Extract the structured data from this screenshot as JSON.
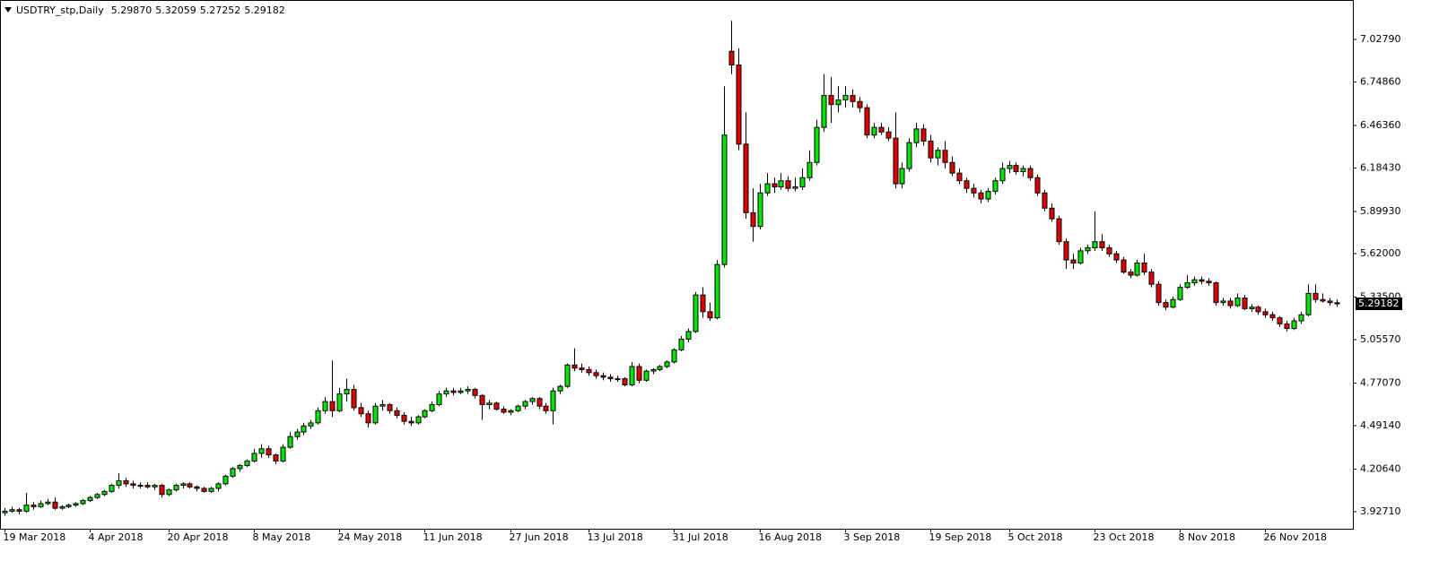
{
  "chart_data": {
    "type": "candlestick",
    "symbol": "USDTRY_stp,Daily",
    "ohlc_labels": [
      "5.29870",
      "5.32059",
      "5.27252",
      "5.29182"
    ],
    "up_color": "#00e600",
    "down_color": "#e00000",
    "outline": "#000000",
    "ylim": [
      3.815,
      7.269
    ],
    "yticks": [
      {
        "value": 3.9271,
        "label": "3.92710"
      },
      {
        "value": 4.2064,
        "label": "4.20640"
      },
      {
        "value": 4.4914,
        "label": "4.49140"
      },
      {
        "value": 4.7707,
        "label": "4.77070"
      },
      {
        "value": 5.0557,
        "label": "5.05570"
      },
      {
        "value": 5.335,
        "label": "5.33500"
      },
      {
        "value": 5.62,
        "label": "5.62000"
      },
      {
        "value": 5.8993,
        "label": "5.89930"
      },
      {
        "value": 6.1843,
        "label": "6.18430"
      },
      {
        "value": 6.4636,
        "label": "6.46360"
      },
      {
        "value": 6.7486,
        "label": "6.74860"
      },
      {
        "value": 7.0279,
        "label": "7.02790"
      }
    ],
    "current_price": {
      "value": 5.29182,
      "label": "5.29182"
    },
    "categories": [
      "19 Mar 2018",
      null,
      null,
      null,
      null,
      null,
      null,
      null,
      null,
      null,
      null,
      null,
      "4 Apr 2018",
      null,
      null,
      null,
      null,
      null,
      null,
      null,
      null,
      null,
      null,
      "20 Apr 2018",
      null,
      null,
      null,
      null,
      null,
      null,
      null,
      null,
      null,
      null,
      null,
      "8 May 2018",
      null,
      null,
      null,
      null,
      null,
      null,
      null,
      null,
      null,
      null,
      null,
      "24 May 2018",
      null,
      null,
      null,
      null,
      null,
      null,
      null,
      null,
      null,
      null,
      null,
      "11 Jun 2018",
      null,
      null,
      null,
      null,
      null,
      null,
      null,
      null,
      null,
      null,
      null,
      "27 Jun 2018",
      null,
      null,
      null,
      null,
      null,
      null,
      null,
      null,
      null,
      null,
      "13 Jul 2018",
      null,
      null,
      null,
      null,
      null,
      null,
      null,
      null,
      null,
      null,
      null,
      "31 Jul 2018",
      null,
      null,
      null,
      null,
      null,
      null,
      null,
      null,
      null,
      null,
      null,
      "16 Aug 2018",
      null,
      null,
      null,
      null,
      null,
      null,
      null,
      null,
      null,
      null,
      null,
      "3 Sep 2018",
      null,
      null,
      null,
      null,
      null,
      null,
      null,
      null,
      null,
      null,
      null,
      "19 Sep 2018",
      null,
      null,
      null,
      null,
      null,
      null,
      null,
      null,
      null,
      null,
      "5 Oct 2018",
      null,
      null,
      null,
      null,
      null,
      null,
      null,
      null,
      null,
      null,
      null,
      "23 Oct 2018",
      null,
      null,
      null,
      null,
      null,
      null,
      null,
      null,
      null,
      null,
      null,
      "8 Nov 2018",
      null,
      null,
      null,
      null,
      null,
      null,
      null,
      null,
      null,
      null,
      null,
      "26 Nov 2018",
      null,
      null,
      null,
      null,
      null,
      null,
      null,
      null,
      null,
      null
    ],
    "candles": [
      [
        3.92,
        3.95,
        3.9,
        3.93
      ],
      [
        3.93,
        3.96,
        3.92,
        3.94
      ],
      [
        3.94,
        3.95,
        3.91,
        3.93
      ],
      [
        3.93,
        4.05,
        3.92,
        3.97
      ],
      [
        3.97,
        3.99,
        3.94,
        3.96
      ],
      [
        3.96,
        4.0,
        3.95,
        3.98
      ],
      [
        3.98,
        4.01,
        3.97,
        3.99
      ],
      [
        3.99,
        4.02,
        3.94,
        3.95
      ],
      [
        3.95,
        3.97,
        3.94,
        3.96
      ],
      [
        3.96,
        3.98,
        3.95,
        3.97
      ],
      [
        3.97,
        3.99,
        3.96,
        3.98
      ],
      [
        3.98,
        4.01,
        3.97,
        4.0
      ],
      [
        4.0,
        4.03,
        3.99,
        4.02
      ],
      [
        4.02,
        4.05,
        4.01,
        4.04
      ],
      [
        4.04,
        4.07,
        4.03,
        4.06
      ],
      [
        4.06,
        4.11,
        4.05,
        4.1
      ],
      [
        4.1,
        4.18,
        4.08,
        4.13
      ],
      [
        4.13,
        4.15,
        4.09,
        4.11
      ],
      [
        4.11,
        4.13,
        4.08,
        4.1
      ],
      [
        4.1,
        4.12,
        4.08,
        4.1
      ],
      [
        4.1,
        4.12,
        4.08,
        4.09
      ],
      [
        4.09,
        4.11,
        4.07,
        4.1
      ],
      [
        4.1,
        4.11,
        4.02,
        4.04
      ],
      [
        4.04,
        4.08,
        4.03,
        4.07
      ],
      [
        4.07,
        4.11,
        4.06,
        4.1
      ],
      [
        4.1,
        4.12,
        4.08,
        4.11
      ],
      [
        4.11,
        4.12,
        4.08,
        4.09
      ],
      [
        4.09,
        4.1,
        4.06,
        4.08
      ],
      [
        4.08,
        4.09,
        4.05,
        4.06
      ],
      [
        4.06,
        4.09,
        4.05,
        4.08
      ],
      [
        4.08,
        4.12,
        4.06,
        4.11
      ],
      [
        4.11,
        4.17,
        4.1,
        4.16
      ],
      [
        4.16,
        4.22,
        4.15,
        4.21
      ],
      [
        4.21,
        4.24,
        4.19,
        4.23
      ],
      [
        4.23,
        4.27,
        4.22,
        4.26
      ],
      [
        4.26,
        4.34,
        4.25,
        4.31
      ],
      [
        4.31,
        4.37,
        4.28,
        4.34
      ],
      [
        4.34,
        4.36,
        4.28,
        4.3
      ],
      [
        4.3,
        4.31,
        4.24,
        4.26
      ],
      [
        4.26,
        4.37,
        4.25,
        4.35
      ],
      [
        4.35,
        4.45,
        4.34,
        4.42
      ],
      [
        4.42,
        4.47,
        4.4,
        4.45
      ],
      [
        4.45,
        4.51,
        4.43,
        4.49
      ],
      [
        4.49,
        4.53,
        4.47,
        4.51
      ],
      [
        4.51,
        4.61,
        4.5,
        4.59
      ],
      [
        4.59,
        4.68,
        4.57,
        4.65
      ],
      [
        4.65,
        4.92,
        4.55,
        4.59
      ],
      [
        4.59,
        4.74,
        4.58,
        4.7
      ],
      [
        4.7,
        4.8,
        4.65,
        4.73
      ],
      [
        4.73,
        4.76,
        4.59,
        4.61
      ],
      [
        4.61,
        4.64,
        4.55,
        4.57
      ],
      [
        4.57,
        4.59,
        4.48,
        4.51
      ],
      [
        4.51,
        4.64,
        4.5,
        4.62
      ],
      [
        4.62,
        4.66,
        4.59,
        4.63
      ],
      [
        4.63,
        4.64,
        4.57,
        4.59
      ],
      [
        4.59,
        4.61,
        4.54,
        4.56
      ],
      [
        4.56,
        4.58,
        4.5,
        4.52
      ],
      [
        4.52,
        4.55,
        4.49,
        4.51
      ],
      [
        4.51,
        4.56,
        4.5,
        4.55
      ],
      [
        4.55,
        4.6,
        4.54,
        4.59
      ],
      [
        4.59,
        4.65,
        4.58,
        4.63
      ],
      [
        4.63,
        4.72,
        4.62,
        4.7
      ],
      [
        4.7,
        4.74,
        4.68,
        4.72
      ],
      [
        4.72,
        4.74,
        4.69,
        4.71
      ],
      [
        4.71,
        4.74,
        4.7,
        4.72
      ],
      [
        4.72,
        4.75,
        4.7,
        4.73
      ],
      [
        4.73,
        4.74,
        4.67,
        4.69
      ],
      [
        4.69,
        4.7,
        4.53,
        4.63
      ],
      [
        4.63,
        4.66,
        4.6,
        4.64
      ],
      [
        4.64,
        4.65,
        4.59,
        4.6
      ],
      [
        4.6,
        4.62,
        4.57,
        4.58
      ],
      [
        4.58,
        4.6,
        4.56,
        4.59
      ],
      [
        4.59,
        4.63,
        4.58,
        4.62
      ],
      [
        4.62,
        4.66,
        4.6,
        4.65
      ],
      [
        4.65,
        4.68,
        4.63,
        4.67
      ],
      [
        4.67,
        4.68,
        4.6,
        4.62
      ],
      [
        4.62,
        4.64,
        4.57,
        4.59
      ],
      [
        4.59,
        4.74,
        4.5,
        4.72
      ],
      [
        4.72,
        4.76,
        4.7,
        4.75
      ],
      [
        4.75,
        4.9,
        4.74,
        4.89
      ],
      [
        4.89,
        5.0,
        4.85,
        4.87
      ],
      [
        4.87,
        4.9,
        4.84,
        4.86
      ],
      [
        4.86,
        4.88,
        4.82,
        4.84
      ],
      [
        4.84,
        4.86,
        4.8,
        4.82
      ],
      [
        4.82,
        4.84,
        4.79,
        4.81
      ],
      [
        4.81,
        4.83,
        4.78,
        4.8
      ],
      [
        4.8,
        4.82,
        4.78,
        4.8
      ],
      [
        4.8,
        4.81,
        4.75,
        4.76
      ],
      [
        4.76,
        4.91,
        4.75,
        4.88
      ],
      [
        4.88,
        4.9,
        4.77,
        4.79
      ],
      [
        4.79,
        4.86,
        4.78,
        4.85
      ],
      [
        4.85,
        4.87,
        4.83,
        4.86
      ],
      [
        4.86,
        4.89,
        4.85,
        4.88
      ],
      [
        4.88,
        4.92,
        4.87,
        4.91
      ],
      [
        4.91,
        5.0,
        4.9,
        4.99
      ],
      [
        4.99,
        5.08,
        4.98,
        5.06
      ],
      [
        5.06,
        5.13,
        5.04,
        5.11
      ],
      [
        5.11,
        5.37,
        5.1,
        5.35
      ],
      [
        5.35,
        5.4,
        5.2,
        5.24
      ],
      [
        5.24,
        5.3,
        5.18,
        5.2
      ],
      [
        5.2,
        5.58,
        5.19,
        5.55
      ],
      [
        5.55,
        6.72,
        5.53,
        6.4
      ],
      [
        6.95,
        7.15,
        6.8,
        6.86
      ],
      [
        6.86,
        6.97,
        6.3,
        6.34
      ],
      [
        6.34,
        6.55,
        5.85,
        5.89
      ],
      [
        5.89,
        6.05,
        5.7,
        5.8
      ],
      [
        5.8,
        6.08,
        5.78,
        6.02
      ],
      [
        6.02,
        6.15,
        6.0,
        6.08
      ],
      [
        6.08,
        6.12,
        6.02,
        6.06
      ],
      [
        6.06,
        6.15,
        6.04,
        6.1
      ],
      [
        6.1,
        6.13,
        6.03,
        6.05
      ],
      [
        6.05,
        6.12,
        6.03,
        6.06
      ],
      [
        6.06,
        6.18,
        6.04,
        6.12
      ],
      [
        6.12,
        6.3,
        6.1,
        6.22
      ],
      [
        6.22,
        6.5,
        6.2,
        6.45
      ],
      [
        6.45,
        6.8,
        6.42,
        6.66
      ],
      [
        6.66,
        6.78,
        6.48,
        6.6
      ],
      [
        6.6,
        6.72,
        6.55,
        6.63
      ],
      [
        6.63,
        6.72,
        6.58,
        6.66
      ],
      [
        6.66,
        6.7,
        6.58,
        6.62
      ],
      [
        6.62,
        6.65,
        6.55,
        6.58
      ],
      [
        6.58,
        6.6,
        6.38,
        6.4
      ],
      [
        6.4,
        6.48,
        6.38,
        6.45
      ],
      [
        6.45,
        6.48,
        6.4,
        6.42
      ],
      [
        6.42,
        6.45,
        6.36,
        6.38
      ],
      [
        6.38,
        6.55,
        6.05,
        6.08
      ],
      [
        6.08,
        6.22,
        6.05,
        6.18
      ],
      [
        6.18,
        6.38,
        6.16,
        6.35
      ],
      [
        6.35,
        6.48,
        6.32,
        6.44
      ],
      [
        6.44,
        6.47,
        6.33,
        6.36
      ],
      [
        6.36,
        6.4,
        6.22,
        6.25
      ],
      [
        6.25,
        6.32,
        6.2,
        6.3
      ],
      [
        6.3,
        6.36,
        6.18,
        6.22
      ],
      [
        6.22,
        6.26,
        6.13,
        6.15
      ],
      [
        6.15,
        6.18,
        6.08,
        6.1
      ],
      [
        6.1,
        6.12,
        6.02,
        6.05
      ],
      [
        6.05,
        6.08,
        5.99,
        6.02
      ],
      [
        6.02,
        6.04,
        5.95,
        5.98
      ],
      [
        5.98,
        6.05,
        5.96,
        6.03
      ],
      [
        6.03,
        6.12,
        6.01,
        6.1
      ],
      [
        6.1,
        6.22,
        6.08,
        6.18
      ],
      [
        6.18,
        6.23,
        6.15,
        6.2
      ],
      [
        6.2,
        6.22,
        6.14,
        6.16
      ],
      [
        6.16,
        6.2,
        6.13,
        6.18
      ],
      [
        6.18,
        6.2,
        6.1,
        6.12
      ],
      [
        6.12,
        6.14,
        6.0,
        6.02
      ],
      [
        6.02,
        6.04,
        5.9,
        5.92
      ],
      [
        5.92,
        5.95,
        5.83,
        5.85
      ],
      [
        5.85,
        5.87,
        5.68,
        5.7
      ],
      [
        5.7,
        5.72,
        5.52,
        5.58
      ],
      [
        5.58,
        5.62,
        5.52,
        5.56
      ],
      [
        5.56,
        5.66,
        5.55,
        5.64
      ],
      [
        5.64,
        5.68,
        5.62,
        5.66
      ],
      [
        5.66,
        5.9,
        5.64,
        5.7
      ],
      [
        5.7,
        5.75,
        5.64,
        5.66
      ],
      [
        5.66,
        5.68,
        5.6,
        5.62
      ],
      [
        5.62,
        5.64,
        5.56,
        5.58
      ],
      [
        5.58,
        5.6,
        5.49,
        5.5
      ],
      [
        5.5,
        5.52,
        5.46,
        5.48
      ],
      [
        5.48,
        5.58,
        5.47,
        5.56
      ],
      [
        5.56,
        5.62,
        5.48,
        5.5
      ],
      [
        5.5,
        5.52,
        5.4,
        5.42
      ],
      [
        5.42,
        5.44,
        5.28,
        5.3
      ],
      [
        5.3,
        5.32,
        5.25,
        5.27
      ],
      [
        5.27,
        5.34,
        5.26,
        5.32
      ],
      [
        5.32,
        5.42,
        5.31,
        5.4
      ],
      [
        5.4,
        5.48,
        5.39,
        5.43
      ],
      [
        5.43,
        5.47,
        5.41,
        5.45
      ],
      [
        5.45,
        5.47,
        5.42,
        5.44
      ],
      [
        5.44,
        5.46,
        5.41,
        5.43
      ],
      [
        5.43,
        5.44,
        5.28,
        5.3
      ],
      [
        5.3,
        5.33,
        5.28,
        5.31
      ],
      [
        5.31,
        5.33,
        5.26,
        5.28
      ],
      [
        5.28,
        5.36,
        5.27,
        5.33
      ],
      [
        5.33,
        5.35,
        5.25,
        5.26
      ],
      [
        5.26,
        5.29,
        5.24,
        5.27
      ],
      [
        5.27,
        5.28,
        5.22,
        5.24
      ],
      [
        5.24,
        5.26,
        5.2,
        5.22
      ],
      [
        5.22,
        5.24,
        5.18,
        5.2
      ],
      [
        5.2,
        5.21,
        5.14,
        5.16
      ],
      [
        5.16,
        5.18,
        5.11,
        5.13
      ],
      [
        5.13,
        5.2,
        5.12,
        5.18
      ],
      [
        5.18,
        5.24,
        5.16,
        5.22
      ],
      [
        5.22,
        5.42,
        5.21,
        5.36
      ],
      [
        5.36,
        5.42,
        5.3,
        5.32
      ],
      [
        5.32,
        5.36,
        5.3,
        5.31
      ],
      [
        5.31,
        5.33,
        5.28,
        5.3
      ],
      [
        5.2987,
        5.32059,
        5.27252,
        5.29182
      ]
    ]
  }
}
